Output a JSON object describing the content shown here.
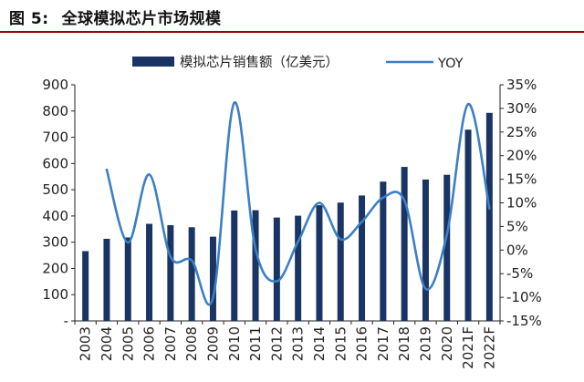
{
  "figure": {
    "number": "图 5:",
    "title": "全球模拟芯片市场规模"
  },
  "colors": {
    "bar": "#1a3563",
    "line": "#3c7fc4",
    "axis": "#222222",
    "title_rule": "#9a0000"
  },
  "chart_data": {
    "type": "bar",
    "categories": [
      "2003",
      "2004",
      "2005",
      "2006",
      "2007",
      "2008",
      "2009",
      "2010",
      "2011",
      "2012",
      "2013",
      "2014",
      "2015",
      "2016",
      "2017",
      "2018",
      "2019",
      "2020",
      "2021F",
      "2022F"
    ],
    "series": [
      {
        "name": "模拟芯片销售额（亿美元）",
        "type": "bar",
        "axis": "left",
        "values": [
          266,
          313,
          318,
          370,
          365,
          357,
          321,
          421,
          422,
          394,
          401,
          441,
          451,
          478,
          531,
          587,
          539,
          557,
          729,
          793
        ]
      },
      {
        "name": "YOY",
        "type": "line",
        "axis": "right",
        "values": [
          null,
          17.0,
          1.6,
          16.0,
          -1.4,
          -2.2,
          -10.1,
          31.2,
          0.2,
          -6.6,
          1.8,
          10.0,
          2.3,
          6.0,
          11.1,
          10.5,
          -8.2,
          3.3,
          30.9,
          8.8
        ]
      }
    ],
    "y_left": {
      "ylim": [
        0,
        900
      ],
      "ticks": [
        0,
        100,
        200,
        300,
        400,
        500,
        600,
        700,
        800,
        900
      ],
      "tick_labels": [
        "-",
        "100",
        "200",
        "300",
        "400",
        "500",
        "600",
        "700",
        "800",
        "900"
      ]
    },
    "y_right": {
      "ylim": [
        -15,
        35
      ],
      "ticks": [
        -15,
        -10,
        -5,
        0,
        5,
        10,
        15,
        20,
        25,
        30,
        35
      ],
      "tick_labels": [
        "-15%",
        "-10%",
        "-5%",
        "0%",
        "5%",
        "10%",
        "15%",
        "20%",
        "25%",
        "30%",
        "35%"
      ]
    },
    "legend": "top-center",
    "grid": false
  }
}
